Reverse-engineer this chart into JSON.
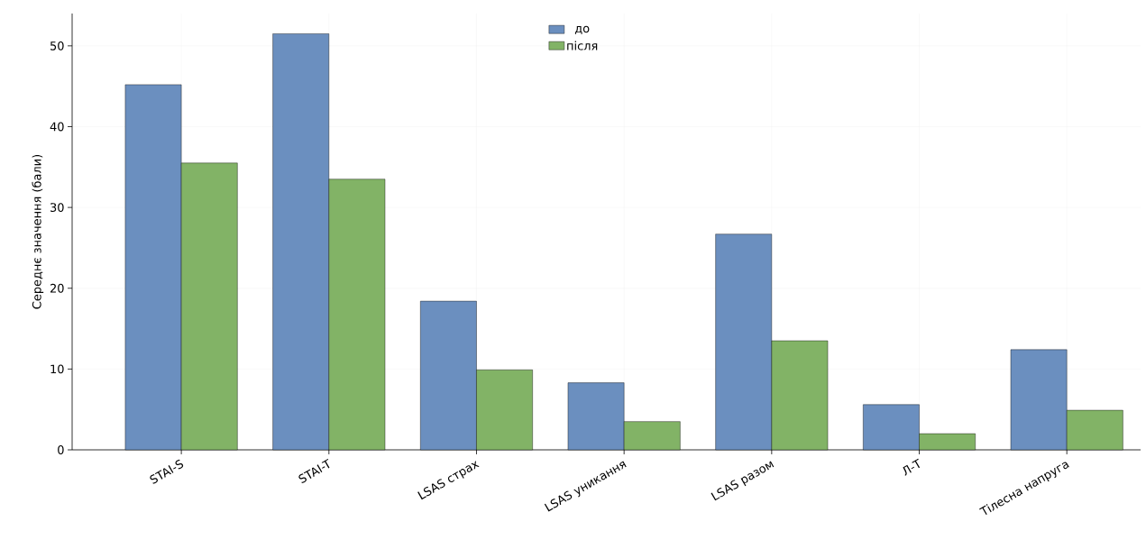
{
  "chart_data": {
    "type": "bar",
    "ylabel": "Середнє значення (бали)",
    "categories": [
      "STAI-S",
      "STAI-T",
      "LSAS страх",
      "LSAS уникання",
      "LSAS разом",
      "Л-Т",
      "Тілесна напруга"
    ],
    "series": [
      {
        "name": "до",
        "color": "#6b8fbf",
        "values": [
          45.2,
          51.5,
          18.4,
          8.3,
          26.7,
          5.6,
          12.4
        ]
      },
      {
        "name": "після",
        "color": "#82b366",
        "values": [
          35.5,
          33.5,
          9.9,
          3.5,
          13.5,
          2.0,
          4.9
        ]
      }
    ],
    "ylim": [
      0,
      54
    ],
    "yticks": [
      0,
      10,
      20,
      30,
      40,
      50
    ],
    "grid": true,
    "legend": "top"
  }
}
